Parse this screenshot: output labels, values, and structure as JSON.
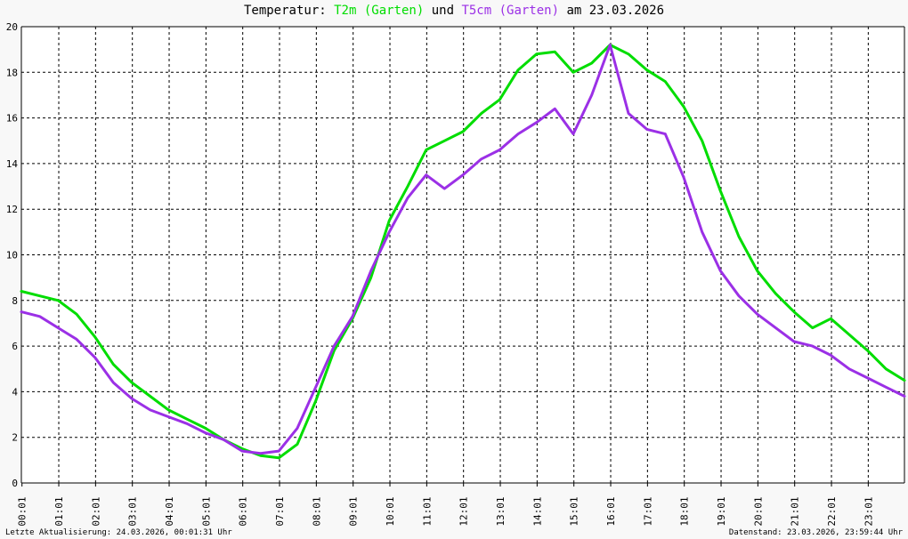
{
  "title": {
    "prefix": "Temperatur: ",
    "series1": "T2m (Garten)",
    "mid": " und ",
    "series2": "T5cm (Garten)",
    "suffix": " am 23.03.2026"
  },
  "footer": {
    "left": "Letzte Aktualisierung: 24.03.2026, 00:01:31 Uhr",
    "right": "Datenstand: 23.03.2026, 23:59:44 Uhr"
  },
  "colors": {
    "t2m": "#00dd00",
    "t5cm": "#9b30e6",
    "grid": "#000000",
    "background": "#f8f8f8"
  },
  "chart_data": {
    "type": "line",
    "ylim": [
      0,
      20
    ],
    "xlim": [
      0,
      24
    ],
    "yticks": [
      0,
      2,
      4,
      6,
      8,
      10,
      12,
      14,
      16,
      18,
      20
    ],
    "xtick_labels": [
      "00:01",
      "01:01",
      "02:01",
      "03:01",
      "04:01",
      "05:01",
      "06:01",
      "07:01",
      "08:01",
      "09:01",
      "10:01",
      "11:01",
      "12:01",
      "13:01",
      "14:01",
      "15:01",
      "16:01",
      "17:01",
      "18:01",
      "19:01",
      "20:01",
      "21:01",
      "22:01",
      "23:01"
    ],
    "grid": true,
    "series": [
      {
        "name": "T2m (Garten)",
        "color": "#00dd00",
        "x": [
          0,
          0.5,
          1,
          1.5,
          2,
          2.5,
          3,
          3.5,
          4,
          4.5,
          5,
          5.5,
          6,
          6.5,
          7,
          7.5,
          8,
          8.5,
          9,
          9.5,
          10,
          10.5,
          11,
          11.5,
          12,
          12.5,
          13,
          13.5,
          14,
          14.5,
          15,
          15.5,
          16,
          16.5,
          17,
          17.5,
          18,
          18.5,
          19,
          19.5,
          20,
          20.5,
          21,
          21.5,
          22,
          22.5,
          23,
          23.5,
          24
        ],
        "y": [
          8.4,
          8.2,
          8.0,
          7.4,
          6.4,
          5.2,
          4.4,
          3.8,
          3.2,
          2.8,
          2.4,
          1.9,
          1.5,
          1.2,
          1.1,
          1.7,
          3.6,
          5.8,
          7.2,
          9.0,
          11.5,
          13.0,
          14.6,
          15.0,
          15.4,
          16.2,
          16.8,
          18.1,
          18.8,
          18.9,
          18.0,
          18.4,
          19.2,
          18.8,
          18.1,
          17.6,
          16.5,
          15.0,
          12.8,
          10.8,
          9.3,
          8.3,
          7.5,
          6.8,
          7.2,
          6.5,
          5.8,
          5.0,
          4.5
        ]
      },
      {
        "name": "T5cm (Garten)",
        "color": "#9b30e6",
        "x": [
          0,
          0.5,
          1,
          1.5,
          2,
          2.5,
          3,
          3.5,
          4,
          4.5,
          5,
          5.5,
          6,
          6.5,
          7,
          7.5,
          8,
          8.5,
          9,
          9.5,
          10,
          10.5,
          11,
          11.5,
          12,
          12.5,
          13,
          13.5,
          14,
          14.5,
          15,
          15.5,
          16,
          16.5,
          17,
          17.5,
          18,
          18.5,
          19,
          19.5,
          20,
          20.5,
          21,
          21.5,
          22,
          22.5,
          23,
          23.5,
          24
        ],
        "y": [
          7.5,
          7.3,
          6.8,
          6.3,
          5.5,
          4.4,
          3.7,
          3.2,
          2.9,
          2.6,
          2.2,
          1.9,
          1.4,
          1.3,
          1.4,
          2.4,
          4.2,
          6.0,
          7.3,
          9.3,
          11.0,
          12.5,
          13.5,
          12.9,
          13.5,
          14.2,
          14.6,
          15.3,
          15.8,
          16.4,
          15.3,
          17.0,
          19.2,
          16.2,
          15.5,
          15.3,
          13.4,
          11.0,
          9.3,
          8.2,
          7.4,
          6.8,
          6.2,
          6.0,
          5.6,
          5.0,
          4.6,
          4.2,
          3.8
        ]
      }
    ]
  }
}
